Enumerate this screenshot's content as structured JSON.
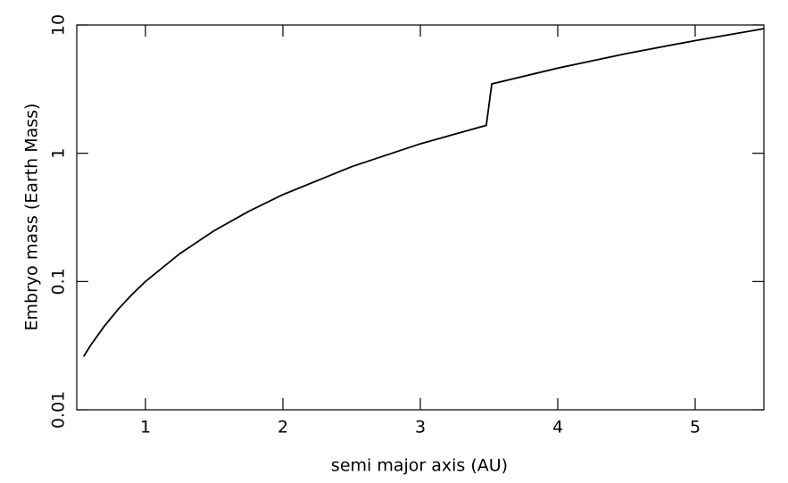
{
  "chart_data": {
    "type": "line",
    "x_label": "semi major axis (AU)",
    "y_label": "Embryo mass (Earth Mass)",
    "x": [
      0.55,
      0.6,
      0.7,
      0.8,
      0.9,
      1.0,
      1.25,
      1.5,
      1.75,
      2.0,
      2.5,
      3.0,
      3.48,
      3.52,
      4.0,
      4.5,
      5.0,
      5.5
    ],
    "series": [
      {
        "color": "#000000",
        "values": [
          0.026,
          0.0317,
          0.0448,
          0.0605,
          0.0789,
          0.1,
          0.165,
          0.249,
          0.352,
          0.476,
          0.786,
          1.185,
          1.65,
          3.47,
          4.61,
          5.99,
          7.56,
          9.36
        ]
      }
    ],
    "xlim": [
      0.5,
      5.5
    ],
    "xticks": [
      1,
      2,
      3,
      4,
      5
    ],
    "ylim": [
      0.01,
      10
    ],
    "yticks": [
      0.01,
      0.1,
      1,
      10
    ],
    "y_scale": "log"
  }
}
